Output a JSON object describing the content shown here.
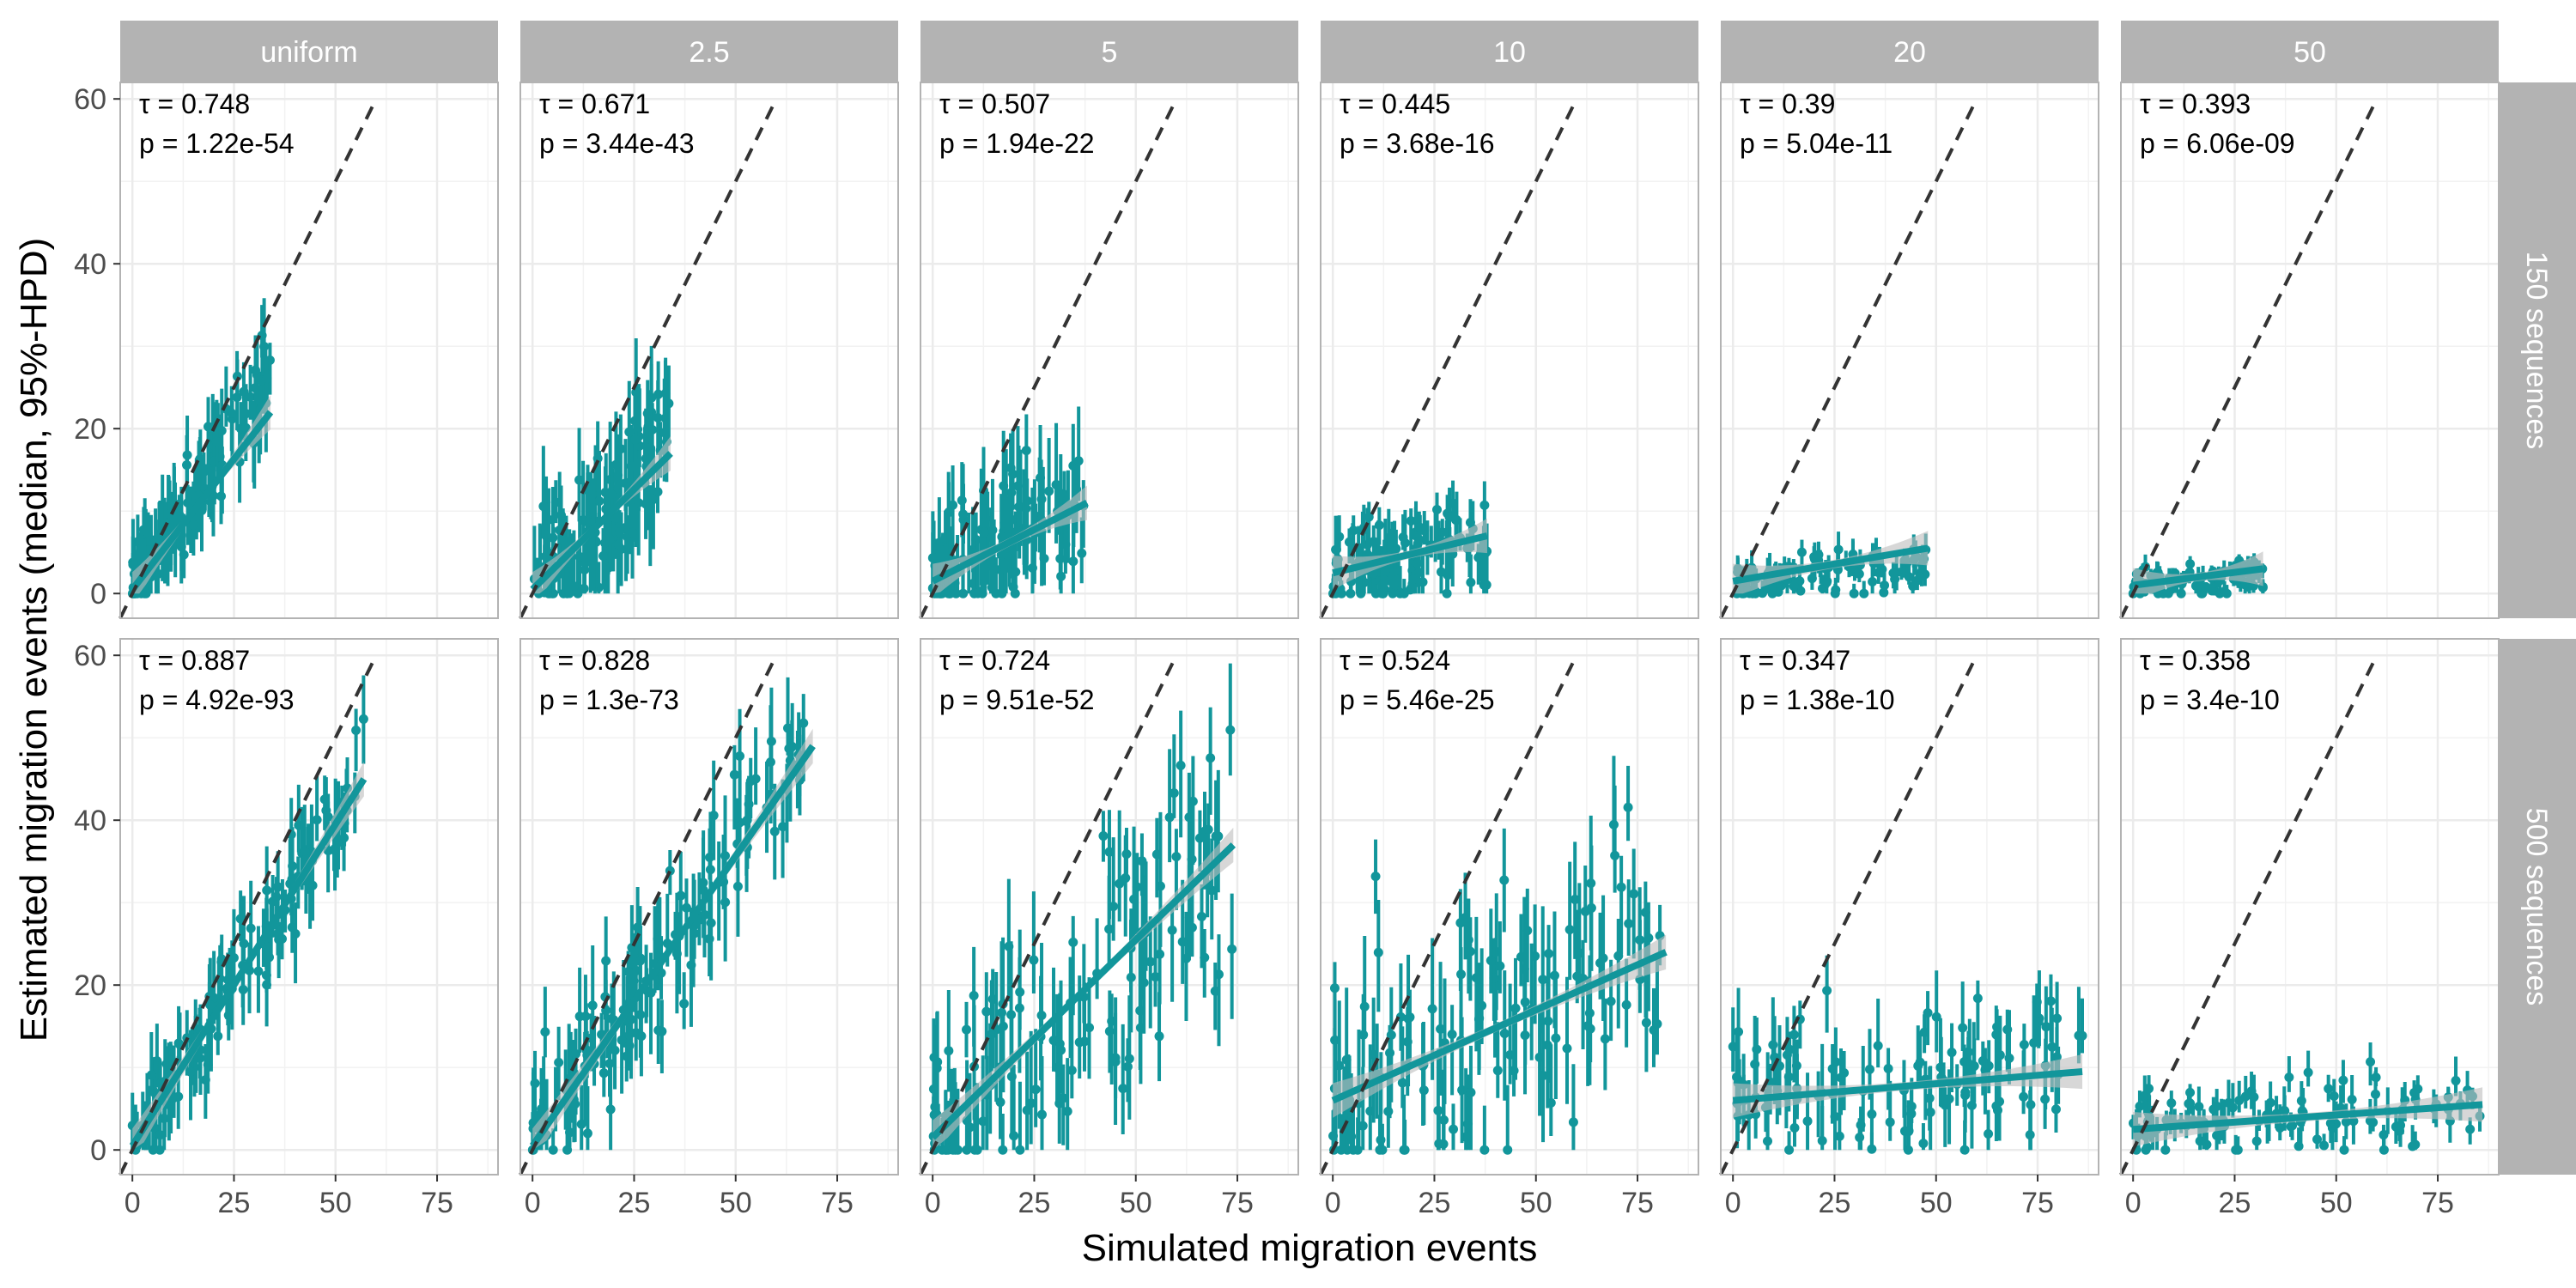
{
  "figure": {
    "xlabel": "Simulated migration events",
    "ylabel": "Estimated migration events (median, 95%-HPD)",
    "column_strips": [
      "uniform",
      "2.5",
      "5",
      "10",
      "20",
      "50"
    ],
    "row_strips": [
      "150 sequences",
      "500 sequences"
    ],
    "x_ticks": [
      "0",
      "25",
      "50",
      "75"
    ],
    "y_ticks": [
      "0",
      "20",
      "40",
      "60"
    ],
    "colors": {
      "points": "#12969b",
      "fit_line": "#12969b",
      "ribbon": "#bdbdbd",
      "identity_line": "#333333",
      "strip": "#b3b3b3",
      "grid": "#ebebeb",
      "panel_border": "#b3b3b3"
    }
  },
  "chart_data": {
    "type": "scatter",
    "facets": "rows x columns",
    "xlim": [
      -3,
      90
    ],
    "ylim": [
      -3,
      62
    ],
    "identity_line": "y = x (dashed)",
    "panels": [
      {
        "row": "150 sequences",
        "col": "uniform",
        "tau_label": "τ =",
        "tau": "0.748",
        "p_label": "p =",
        "p": "1.22e-54",
        "fit": {
          "x0": 0,
          "y0": 0.5,
          "x1": 34,
          "y1": 22
        },
        "x_max": 34,
        "cloud_slope": 0.78,
        "cloud_spread": 3.5,
        "n": 120,
        "err": 4
      },
      {
        "row": "150 sequences",
        "col": "2.5",
        "tau_label": "τ =",
        "tau": "0.671",
        "p_label": "p =",
        "p": "3.44e-43",
        "fit": {
          "x0": 0,
          "y0": 0.5,
          "x1": 34,
          "y1": 17
        },
        "x_max": 34,
        "cloud_slope": 0.55,
        "cloud_spread": 4.5,
        "n": 120,
        "err": 5
      },
      {
        "row": "150 sequences",
        "col": "5",
        "tau_label": "τ =",
        "tau": "0.507",
        "p_label": "p =",
        "p": "1.94e-22",
        "fit": {
          "x0": 0,
          "y0": 1.5,
          "x1": 38,
          "y1": 11
        },
        "x_max": 38,
        "cloud_slope": 0.28,
        "cloud_spread": 4.5,
        "n": 120,
        "err": 5
      },
      {
        "row": "150 sequences",
        "col": "10",
        "tau_label": "τ =",
        "tau": "0.445",
        "p_label": "p =",
        "p": "3.68e-16",
        "fit": {
          "x0": 0,
          "y0": 2.5,
          "x1": 38,
          "y1": 7
        },
        "x_max": 38,
        "cloud_slope": 0.1,
        "cloud_spread": 3,
        "n": 110,
        "err": 3
      },
      {
        "row": "150 sequences",
        "col": "20",
        "tau_label": "τ =",
        "tau": "0.39",
        "p_label": "p =",
        "p": "5.04e-11",
        "fit": {
          "x0": 0,
          "y0": 1.5,
          "x1": 48,
          "y1": 5.5
        },
        "x_max": 48,
        "cloud_slope": 0.04,
        "cloud_spread": 1.5,
        "n": 100,
        "err": 1.5
      },
      {
        "row": "150 sequences",
        "col": "50",
        "tau_label": "τ =",
        "tau": "0.393",
        "p_label": "p =",
        "p": "6.06e-09",
        "fit": {
          "x0": 0,
          "y0": 1,
          "x1": 32,
          "y1": 3
        },
        "x_max": 32,
        "cloud_slope": 0.03,
        "cloud_spread": 1,
        "n": 100,
        "err": 1
      },
      {
        "row": "500 sequences",
        "col": "uniform",
        "tau_label": "τ =",
        "tau": "0.887",
        "p_label": "p =",
        "p": "4.92e-93",
        "fit": {
          "x0": 0,
          "y0": 0.5,
          "x1": 57,
          "y1": 45
        },
        "x_max": 57,
        "cloud_slope": 0.8,
        "cloud_spread": 3,
        "n": 130,
        "err": 4
      },
      {
        "row": "500 sequences",
        "col": "2.5",
        "tau_label": "τ =",
        "tau": "0.828",
        "p_label": "p =",
        "p": "1.3e-73",
        "fit": {
          "x0": 0,
          "y0": 0.5,
          "x1": 69,
          "y1": 49
        },
        "x_max": 69,
        "cloud_slope": 0.72,
        "cloud_spread": 4.5,
        "n": 130,
        "err": 5
      },
      {
        "row": "500 sequences",
        "col": "5",
        "tau_label": "τ =",
        "tau": "0.724",
        "p_label": "p =",
        "p": "9.51e-52",
        "fit": {
          "x0": 0,
          "y0": 1.5,
          "x1": 74,
          "y1": 37
        },
        "x_max": 74,
        "cloud_slope": 0.48,
        "cloud_spread": 7,
        "n": 130,
        "err": 6
      },
      {
        "row": "500 sequences",
        "col": "10",
        "tau_label": "τ =",
        "tau": "0.524",
        "p_label": "p =",
        "p": "5.46e-25",
        "fit": {
          "x0": 0,
          "y0": 6,
          "x1": 82,
          "y1": 24
        },
        "x_max": 82,
        "cloud_slope": 0.25,
        "cloud_spread": 9,
        "n": 130,
        "err": 6
      },
      {
        "row": "500 sequences",
        "col": "20",
        "tau_label": "τ =",
        "tau": "0.347",
        "p_label": "p =",
        "p": "1.38e-10",
        "fit": {
          "x0": 0,
          "y0": 6,
          "x1": 86,
          "y1": 9.5
        },
        "x_max": 86,
        "cloud_slope": 0.06,
        "cloud_spread": 5,
        "n": 120,
        "err": 4
      },
      {
        "row": "500 sequences",
        "col": "50",
        "tau_label": "τ =",
        "tau": "0.358",
        "p_label": "p =",
        "p": "3.4e-10",
        "fit": {
          "x0": 0,
          "y0": 2.5,
          "x1": 86,
          "y1": 5.5
        },
        "x_max": 86,
        "cloud_slope": 0.04,
        "cloud_spread": 2.5,
        "n": 110,
        "err": 2
      }
    ]
  }
}
